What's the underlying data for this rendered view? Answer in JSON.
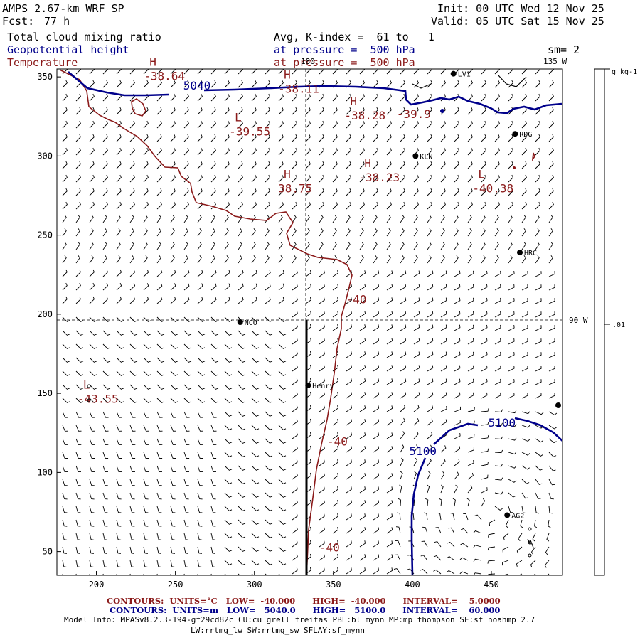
{
  "header": {
    "title": "AMPS 2.67-km WRF SP",
    "forecast_label": "Fcst:",
    "forecast_hours": "77 h",
    "init": "Init: 00 UTC Wed 12 Nov 25",
    "valid": "Valid: 05 UTC Sat 15 Nov 25",
    "field1": "Total cloud mixing ratio",
    "field2": "Geopotential height",
    "field3": "Temperature",
    "avg": "Avg, K-index =  61 to   1",
    "pressure1": "at pressure =  500 hPa",
    "pressure2": "at pressure =  500 hPa",
    "smoothing": "sm= 2"
  },
  "colors": {
    "temperature": "#8b1a1a",
    "height": "#00008b",
    "text_blue": "#00008b",
    "text_red": "#8b1a1a"
  },
  "chart_data": {
    "type": "contour",
    "xlim": [
      175,
      495
    ],
    "ylim": [
      35,
      355
    ],
    "x_ticks": [
      200,
      250,
      300,
      350,
      400,
      450
    ],
    "y_ticks": [
      50,
      100,
      150,
      200,
      250,
      300,
      350
    ],
    "meridian_labels": {
      "top": "180",
      "top_right": "135 W",
      "right": "90 W"
    },
    "colorbar": {
      "unit": "g kg-1",
      "ticks": [
        ".01"
      ]
    },
    "stations": [
      {
        "name": "LV1",
        "x": 426,
        "y": 352
      },
      {
        "name": "RDG",
        "x": 465,
        "y": 314
      },
      {
        "name": "KLN",
        "x": 402,
        "y": 300
      },
      {
        "name": "HRC",
        "x": 468,
        "y": 239
      },
      {
        "name": "NCO",
        "x": 291,
        "y": 195
      },
      {
        "name": "Henry",
        "x": 334,
        "y": 155
      },
      {
        "name": "AG2",
        "x": 460,
        "y": 73
      }
    ],
    "extrema": [
      {
        "sym": "H",
        "val": "-38.64",
        "x": 230,
        "y": 348
      },
      {
        "sym": "H",
        "val": "-38.11",
        "x": 315,
        "y": 340
      },
      {
        "sym": "H",
        "val": "-38.28",
        "x": 357,
        "y": 323
      },
      {
        "sym": "",
        "val": "-39.9",
        "x": 390,
        "y": 324
      },
      {
        "sym": "L",
        "val": "-39.55",
        "x": 284,
        "y": 313
      },
      {
        "sym": "H",
        "val": "-38.23",
        "x": 366,
        "y": 284
      },
      {
        "sym": "H",
        "val": "38.75",
        "x": 315,
        "y": 277
      },
      {
        "sym": "L",
        "val": "-40.38",
        "x": 438,
        "y": 277
      },
      {
        "sym": "L",
        "val": "-43.55",
        "x": 188,
        "y": 144
      }
    ],
    "contour_labels": [
      {
        "text": "5040",
        "series": "height",
        "x": 255,
        "y": 342
      },
      {
        "text": "5100",
        "series": "height",
        "x": 398,
        "y": 111
      },
      {
        "text": "5100",
        "series": "height",
        "x": 448,
        "y": 129
      },
      {
        "text": "-40",
        "series": "temperature",
        "x": 358,
        "y": 207
      },
      {
        "text": "-40",
        "series": "temperature",
        "x": 346,
        "y": 117
      },
      {
        "text": "-40",
        "series": "temperature",
        "x": 341,
        "y": 50
      }
    ],
    "series": [
      {
        "name": "Temperature",
        "units": "°C",
        "low": "-40.000",
        "high": "-40.000",
        "interval": "5.0000"
      },
      {
        "name": "Geopotential height",
        "units": "m",
        "low": "5040.0",
        "high": "5100.0",
        "interval": "60.000"
      }
    ]
  },
  "footer": {
    "temp_legend": "CONTOURS:  UNITS=°C   LOW=  -40.000      HIGH=  -40.000      INTERVAL=    5.0000",
    "height_legend": "CONTOURS:  UNITS=m   LOW=   5040.0      HIGH=   5100.0      INTERVAL=    60.000",
    "model_info_1": "Model Info: MPASv8.2.3-194-gf29cd82c CU:cu_grell_freitas PBL:bl_mynn MP:mp_thompson SF:sf_noahmp 2.7",
    "model_info_2": "LW:rrtmg_lw SW:rrtmg_sw SFLAY:sf_mynn"
  }
}
